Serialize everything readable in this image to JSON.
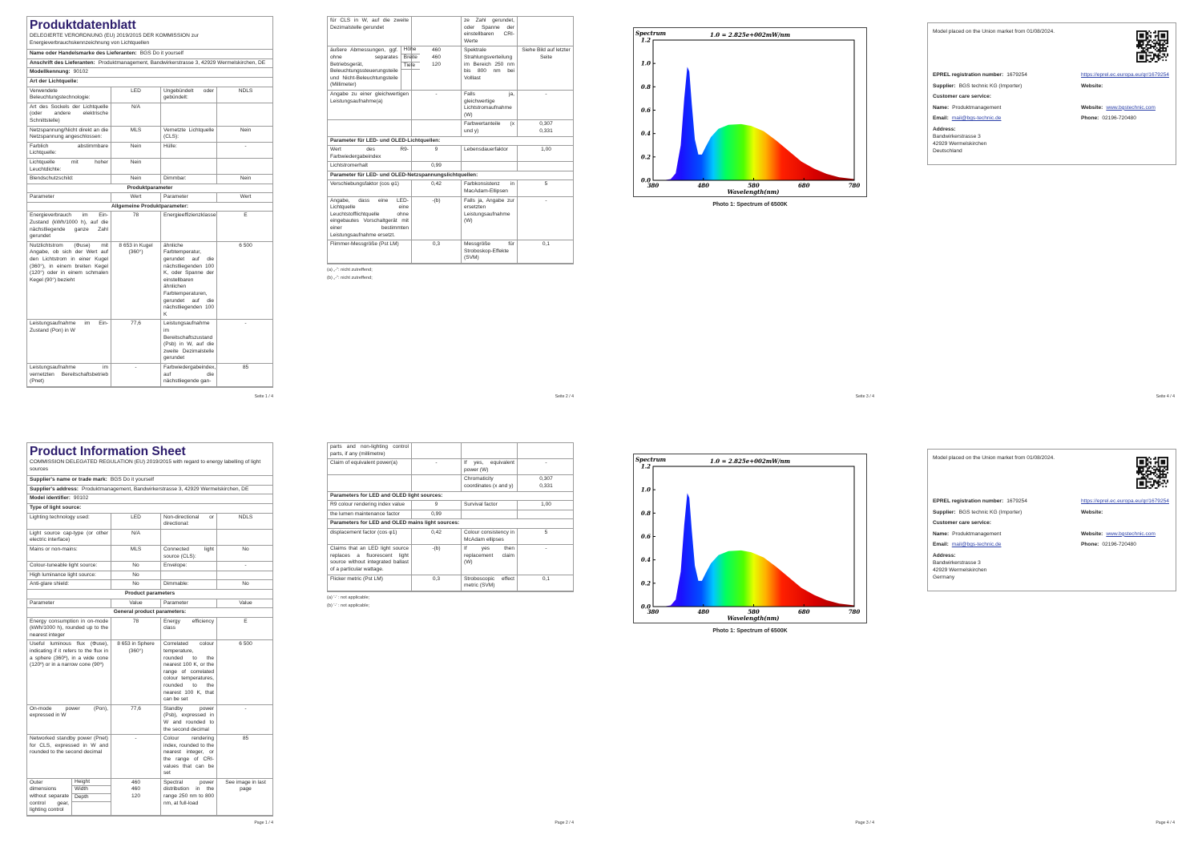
{
  "pages": [
    {
      "blocks": [
        {
          "title": "Produktdatenblatt"
        },
        {
          "subtitle": "DELEGIERTE VERORDNUNG (EU) 2019/2015 DER KOMMISSION zur Energieverbrauchskennzeichnung von Lichtquellen"
        },
        {
          "field": [
            "Name oder Handelsmarke des Lieferanten:",
            "BGS Do it yourself"
          ]
        },
        {
          "field": [
            "Anschrift des Lieferanten:",
            "Produktmanagement, Bandwirkerstrasse 3, 42929 Wermelskirchen, DE"
          ]
        },
        {
          "field": [
            "Modellkennung:",
            "90102"
          ]
        },
        {
          "section": "Art der Lichtquelle:"
        },
        {
          "row": [
            "Verwendete Beleuchtungstechnologie:",
            "LED",
            "Ungebündelt oder gebündelt:",
            "NDLS"
          ]
        },
        {
          "row": [
            "Art des Sockels der Lichtquelle (oder andere elektrische Schnittstelle)",
            "N/A",
            null,
            null
          ]
        },
        {
          "row": [
            "Netzspannung/Nicht direkt an die Netzspannung angeschlossen:",
            "MLS",
            "Vernetzte Lichtquelle (CLS):",
            "Nein"
          ]
        },
        {
          "row": [
            "Farblich abstimmbare Lichtquelle:",
            "Nein",
            "Hülle:",
            "-"
          ]
        },
        {
          "row": [
            "Lichtquelle mit hoher Leuchtdichte:",
            "Nein",
            null,
            null
          ]
        },
        {
          "row": [
            "Blendschutzschild:",
            "Nein",
            "Dimmbar:",
            "Nein"
          ]
        },
        {
          "band": "Produktparameter"
        },
        {
          "row": [
            "Parameter",
            "Wert",
            "Parameter",
            "Wert"
          ]
        },
        {
          "band": "Allgemeine Produktparameter:"
        },
        {
          "row": [
            "Energieverbrauch im Ein-Zustand (kWh/1000 h), auf die nächstliegende ganze Zahl gerundet",
            "78",
            "Energieeffizienzklasse",
            "E"
          ]
        },
        {
          "row": [
            "Nutzlichtstrom (Φuse) mit Angabe, ob sich der Wert auf den Lichtstrom in einer Kugel (360°), in einem breiten Kegel (120°) oder in einem schmalen Kegel (90°) bezieht",
            "8 653 in Kugel (360°)",
            "ähnliche Farbtemperatur, gerundet auf die nächstliegenden 100 K, oder Spanne der einstellbaren ähnlichen Farbtemperaturen, gerundet auf die nächstliegenden 100 K",
            "6 500"
          ]
        },
        {
          "row": [
            "Leistungsaufnahme im Ein-Zustand (Pon) in W",
            "77,6",
            "Leistungsaufnahme im Bereitschaftszustand (Psb) in W, auf die zweite Dezimalstelle gerundet",
            "-"
          ]
        },
        {
          "row": [
            "Leistungsaufnahme im vernetzten Bereitschaftsbetrieb (Pnet)",
            "-",
            "Farbwiedergabeindex, auf die nächstliegende gan-",
            "85"
          ]
        }
      ],
      "footer": "Seite 1 / 4"
    },
    {
      "blocks": [
        {
          "row": [
            "für CLS in W, auf die zweite Dezimalstelle gerundet",
            null,
            "ze Zahl gerundet, oder Spanne der einstellbaren CRI-Werte",
            null
          ]
        },
        {
          "row": [
            {
              "text": "äußere Abmessungen, ggf. ohne separates Betriebsgerät, Beleuchtungssteuerungsteile und Nicht-Beleuchtungsteile (Millimeter)",
              "sub": [
                "Höhe",
                "Breite",
                "Tiefe"
              ]
            },
            [
              "460",
              "460",
              "120"
            ],
            "Spektrale Strahlungsverteilung im Bereich 250 nm bis 800 nm bei Volllast",
            "Siehe Bild auf letzter Seite"
          ]
        },
        {
          "row": [
            "Angabe zu einer gleichwertigen Leistungsaufnahme(a)",
            "-",
            "Falls ja, gleichwertige Lichtstromaufnahme (W)",
            "-"
          ]
        },
        {
          "row": [
            null,
            null,
            "Farbwertanteile (x und y)",
            [
              "0,307",
              "0,331"
            ]
          ]
        },
        {
          "section": "Parameter für LED- und OLED-Lichtquellen:"
        },
        {
          "row": [
            "Wert des R9-Farbwiedergabeindex",
            "9",
            "Lebensdauerfaktor",
            "1,00"
          ]
        },
        {
          "row": [
            "Lichtstromerhalt",
            "0,99",
            null,
            null
          ]
        },
        {
          "section": "Parameter für LED- und OLED-Netzspannungslichtquellen:"
        },
        {
          "row": [
            "Verschiebungsfaktor (cos φ1)",
            "0,42",
            "Farbkonsistenz in MacAdam-Ellipsen",
            "5"
          ]
        },
        {
          "row": [
            "Angabe, dass eine LED-Lichtquelle eine Leuchtstofflichtquelle ohne eingebautes Vorschaltgerät mit einer bestimmten Leistungsaufnahme ersetzt.",
            "-(b)",
            "Falls ja, Angabe zur ersetzten Leistungsaufnahme (W)",
            "-"
          ]
        },
        {
          "row": [
            "Flimmer-Messgröße (Pst LM)",
            "0,3",
            "Messgröße für Stroboskop-Effekte (SVM)",
            "0,1"
          ]
        }
      ],
      "notes": [
        "(a) „-“: nicht zutreffend;",
        "(b) „-“: nicht zutreffend;"
      ],
      "footer": "Seite 2 / 4"
    },
    {
      "figure": {
        "label": "Spectrum",
        "scale": "1.0 = 2.825e+002mW/nm",
        "yticks": [
          "0.0",
          "0.2",
          "0.4",
          "0.6",
          "0.8",
          "1.0",
          "1.2"
        ],
        "xticks": [
          380,
          480,
          580,
          680,
          780
        ],
        "xlabel": "Wavelength(nm)",
        "caption": "Photo 1: Spectrum of 6500K"
      },
      "footer": "Seite 3 / 4"
    },
    {
      "card": {
        "intro": "Model placed on the Union market from 01/08/2024.",
        "rows": [
          {
            "left": {
              "label": "EPREL registration number:",
              "value": "1679254"
            },
            "right": {
              "link": "https://eprel.ec.europa.eu/qr/1679254"
            }
          },
          {
            "left": {
              "label": "Supplier:",
              "value": "BGS technic KG (Importer)"
            },
            "right": {
              "label": "Website:"
            }
          },
          {
            "left": {
              "label": "Customer care service:"
            }
          },
          {
            "left": {
              "label": "Name:",
              "value": "Produktmanagement"
            },
            "right": {
              "label": "Website:",
              "link": "www.bgstechnic.com"
            }
          },
          {
            "left": {
              "label": "Email:",
              "link": "mail@bgs-technic.de"
            },
            "right": {
              "label": "Phone:",
              "value": "02196-720480"
            }
          }
        ],
        "address": {
          "label": "Address:",
          "lines": [
            "Bandwirkerstrasse 3",
            "42929 Wermelskirchen",
            "Deutschland"
          ]
        }
      },
      "footer": "Seite 4 / 4"
    },
    {
      "blocks": [
        {
          "title": "Product Information Sheet"
        },
        {
          "subtitle": "COMMISSION DELEGATED REGULATION (EU) 2019/2015 with regard to energy labelling of light sources"
        },
        {
          "field": [
            "Supplier's name or trade mark:",
            "BGS Do it yourself"
          ]
        },
        {
          "field": [
            "Supplier's address:",
            "Produktmanagement, Bandwirkerstrasse 3, 42929 Wermelskirchen, DE"
          ]
        },
        {
          "field": [
            "Model identifier:",
            "90102"
          ]
        },
        {
          "section": "Type of light source:"
        },
        {
          "row": [
            "Lighting technology used:",
            "LED",
            "Non-directional or directional:",
            "NDLS"
          ]
        },
        {
          "row": [
            "Light source cap-type (or other electric interface)",
            "N/A",
            null,
            null
          ]
        },
        {
          "row": [
            "Mains or non-mains:",
            "MLS",
            "Connected light source (CLS):",
            "No"
          ]
        },
        {
          "row": [
            "Colour-tuneable light source:",
            "No",
            "Envelope:",
            "-"
          ]
        },
        {
          "row": [
            "High luminance light source:",
            "No",
            null,
            null
          ]
        },
        {
          "row": [
            "Anti-glare shield:",
            "No",
            "Dimmable:",
            "No"
          ]
        },
        {
          "band": "Product parameters"
        },
        {
          "row": [
            "Parameter",
            "Value",
            "Parameter",
            "Value"
          ]
        },
        {
          "band": "General product parameters:"
        },
        {
          "row": [
            "Energy consumption in on-mode (kWh/1000 h), rounded up to the nearest integer",
            "78",
            "Energy efficiency class",
            "E"
          ]
        },
        {
          "row": [
            "Useful luminous flux (Φuse), indicating if it refers to the flux in a sphere (360º), in a wide cone (120º) or in a narrow cone (90º)",
            "8 653 in Sphere (360°)",
            "Correlated colour temperature, rounded to the nearest 100 K, or the range of correlated colour temperatures, rounded to the nearest 100 K, that can be set",
            "6 500"
          ]
        },
        {
          "row": [
            "On-mode power (Pon), expressed in W",
            "77,6",
            "Standby power (Psb), expressed in W and rounded to the second decimal",
            "-"
          ]
        },
        {
          "row": [
            "Networked standby power (Pnet) for CLS, expressed in W and rounded to the second decimal",
            "-",
            "Colour rendering index, rounded to the nearest integer, or the range of CRI-values that can be set",
            "85"
          ]
        },
        {
          "row": [
            {
              "text": "Outer dimensions without separate control gear, lighting control",
              "sub": [
                "Height",
                "Width",
                "Depth"
              ]
            },
            [
              "460",
              "460",
              "120"
            ],
            "Spectral power distribution in the range 250 nm to 800 nm, at full-load",
            "See image in last page"
          ]
        }
      ],
      "footer": "Page 1 / 4"
    },
    {
      "blocks": [
        {
          "row": [
            "parts and non-lighting control parts, if any (millimetre)",
            null,
            null,
            null
          ]
        },
        {
          "row": [
            "Claim of equivalent power(a)",
            "-",
            "If yes, equivalent power (W)",
            "-"
          ]
        },
        {
          "row": [
            null,
            null,
            "Chromaticity coordinates (x and y)",
            [
              "0,307",
              "0,331"
            ]
          ]
        },
        {
          "section": "Parameters for LED and OLED light sources:"
        },
        {
          "row": [
            "R9 colour rendering index value",
            "9",
            "Survival factor",
            "1,00"
          ]
        },
        {
          "row": [
            "the lumen maintenance factor",
            "0,99",
            null,
            null
          ]
        },
        {
          "section": "Parameters for LED and OLED mains light sources:"
        },
        {
          "row": [
            "displacement factor (cos φ1)",
            "0,42",
            "Colour consistency in McAdam ellipses",
            "5"
          ]
        },
        {
          "row": [
            "Claims that an LED light source replaces a fluorescent light source without integrated ballast of a particular wattage.",
            "-(b)",
            "If yes then replacement claim (W)",
            "-"
          ]
        },
        {
          "row": [
            "Flicker metric (Pst LM)",
            "0,3",
            "Stroboscopic effect metric (SVM)",
            "0,1"
          ]
        }
      ],
      "notes": [
        "(a) '-' : not applicable;",
        "(b) '-' : not applicable;"
      ],
      "footer": "Page 2 / 4"
    },
    {
      "figure": {
        "label": "Spectrum",
        "scale": "1.0 = 2.825e+002mW/nm",
        "yticks": [
          "0.0",
          "0.2",
          "0.4",
          "0.6",
          "0.8",
          "1.0",
          "1.2"
        ],
        "xticks": [
          380,
          480,
          580,
          680,
          780
        ],
        "xlabel": "Wavelength(nm)",
        "caption": "Photo 1: Spectrum of 6500K"
      },
      "footer": "Page 3 / 4"
    },
    {
      "card": {
        "intro": "Model placed on the Union market from 01/08/2024.",
        "rows": [
          {
            "left": {
              "label": "EPREL registration number:",
              "value": "1679254"
            },
            "right": {
              "link": "https://eprel.ec.europa.eu/qr/1679254"
            }
          },
          {
            "left": {
              "label": "Supplier:",
              "value": "BGS technic KG (Importer)"
            },
            "right": {
              "label": "Website:"
            }
          },
          {
            "left": {
              "label": "Customer care service:"
            }
          },
          {
            "left": {
              "label": "Name:",
              "value": "Produktmanagement"
            },
            "right": {
              "label": "Website:",
              "link": "www.bgstechnic.com"
            }
          },
          {
            "left": {
              "label": "Email:",
              "link": "mail@bgs-technic.de"
            },
            "right": {
              "label": "Phone:",
              "value": "02196-720480"
            }
          }
        ],
        "address": {
          "label": "Address:",
          "lines": [
            "Bandwirkerstrasse 3",
            "42929 Wermelskirchen",
            "Germany"
          ]
        }
      },
      "footer": "Page 4 / 4"
    }
  ]
}
